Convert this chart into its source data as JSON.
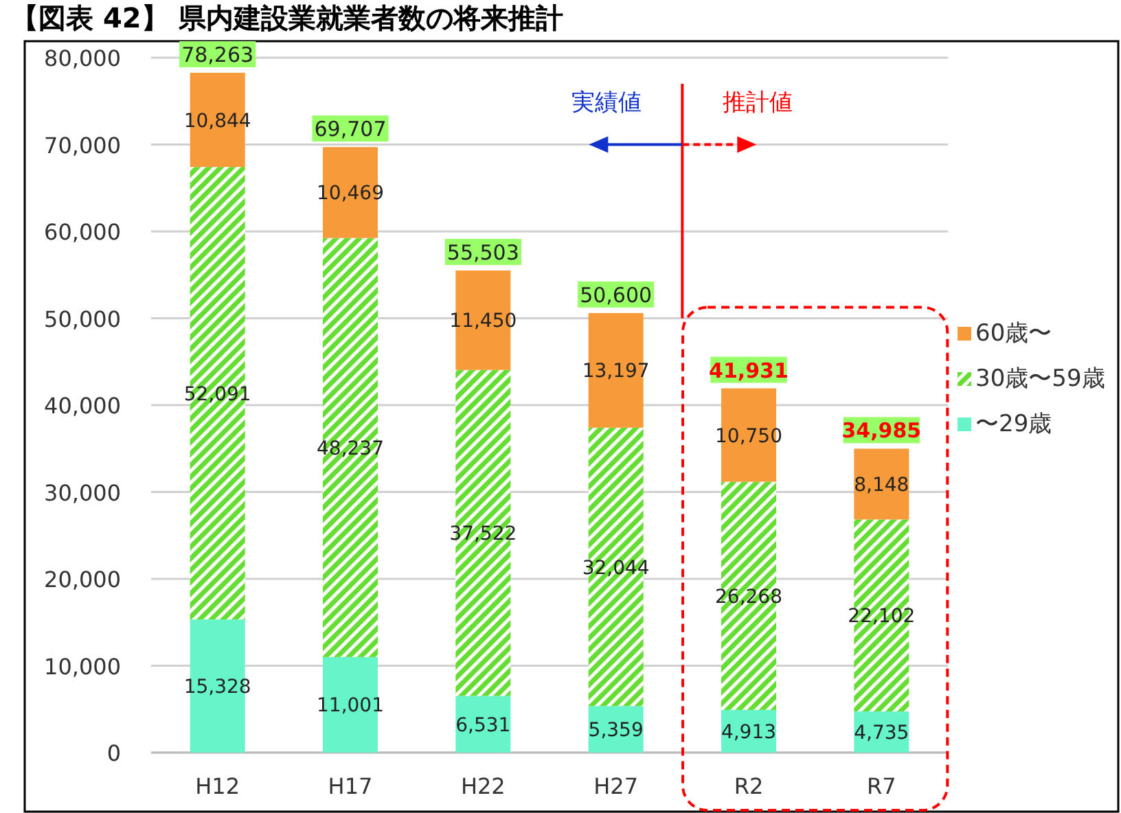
{
  "chart_data": {
    "type": "bar",
    "stacked": true,
    "title": "【図表 42】 県内建設業就業者数の将来推計",
    "categories": [
      "H12",
      "H17",
      "H22",
      "H27",
      "R2",
      "R7"
    ],
    "series": [
      {
        "name": "〜29歳",
        "color": "#66f5c8",
        "values": [
          15328,
          11001,
          6531,
          5359,
          4913,
          4735
        ],
        "value_labels": [
          "15,328",
          "11,001",
          "6,531",
          "5,359",
          "4,913",
          "4,735"
        ]
      },
      {
        "name": "30歳〜59歳",
        "color": "#66dd33",
        "values": [
          52091,
          48237,
          37522,
          32044,
          26268,
          22102
        ],
        "value_labels": [
          "52,091",
          "48,237",
          "37,522",
          "32,044",
          "26,268",
          "22,102"
        ]
      },
      {
        "name": "60歳〜",
        "color": "#f79a3a",
        "values": [
          10844,
          10469,
          11450,
          13197,
          10750,
          8148
        ],
        "value_labels": [
          "10,844",
          "10,469",
          "11,450",
          "13,197",
          "10,750",
          "8,148"
        ]
      }
    ],
    "totals": [
      "78,263",
      "69,707",
      "55,503",
      "50,600",
      "41,931",
      "34,985"
    ],
    "ylim": [
      0,
      80000
    ],
    "yticks": [
      0,
      {
        "value": 10000,
        "label": "10,000"
      },
      {
        "value": 20000,
        "label": "20,000"
      },
      {
        "value": 30000,
        "label": "30,000"
      },
      {
        "value": 40000,
        "label": "40,000"
      },
      {
        "value": 50000,
        "label": "50,000"
      },
      {
        "value": 60000,
        "label": "60,000"
      },
      {
        "value": 70000,
        "label": "70,000"
      },
      {
        "value": 80000,
        "label": "80,000"
      }
    ],
    "grid": "y",
    "legend": "right",
    "annotations": [
      "実績値",
      "推計値"
    ]
  }
}
